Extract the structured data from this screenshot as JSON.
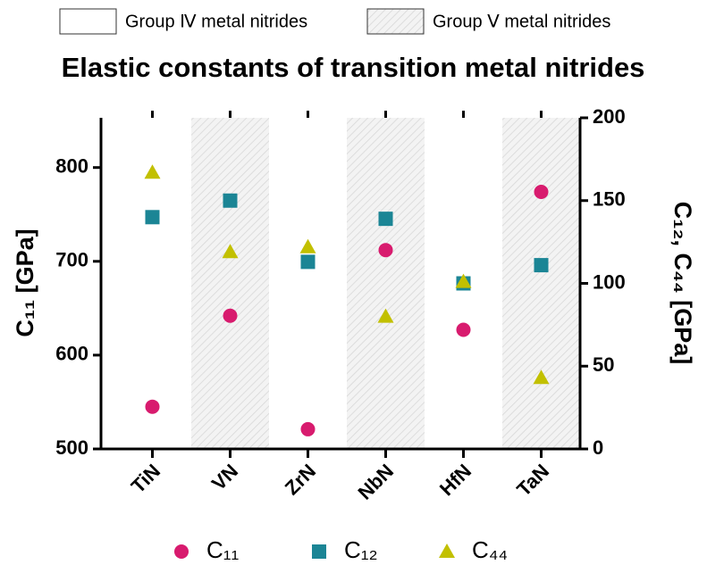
{
  "chart_data": {
    "type": "scatter",
    "title": "Elastic constants of transition metal nitrides",
    "group_legend": [
      {
        "label": "Group Ⅳ metal nitrides",
        "pattern": "none"
      },
      {
        "label": "Group Ⅴ metal nitrides",
        "pattern": "hatch"
      }
    ],
    "category_group": [
      0,
      1,
      0,
      1,
      0,
      1
    ],
    "categories": [
      "TiN",
      "VN",
      "ZrN",
      "NbN",
      "HfN",
      "TaN"
    ],
    "y_label": "C₁₁ [GPa]",
    "y2_label": "C₁₂, C₄₄ [GPa]",
    "ylim": [
      500,
      853
    ],
    "yticks": [
      500,
      600,
      700,
      800
    ],
    "y2lim": [
      0,
      200
    ],
    "y2ticks": [
      0,
      50,
      100,
      150,
      200
    ],
    "series": [
      {
        "name": "C₁₁",
        "color": "#d81b6e",
        "marker": "circle",
        "values": [
          545,
          642,
          521,
          712,
          627,
          774
        ]
      },
      {
        "name": "C₁₂",
        "color": "#1b8595",
        "marker": "square",
        "axis": "y2",
        "values": [
          140,
          150,
          113,
          139,
          100,
          111
        ]
      },
      {
        "name": "C₄₄",
        "color": "#c2c000",
        "marker": "triangle",
        "axis": "y2",
        "values": [
          167,
          119,
          122,
          80,
          101,
          43
        ]
      }
    ]
  }
}
